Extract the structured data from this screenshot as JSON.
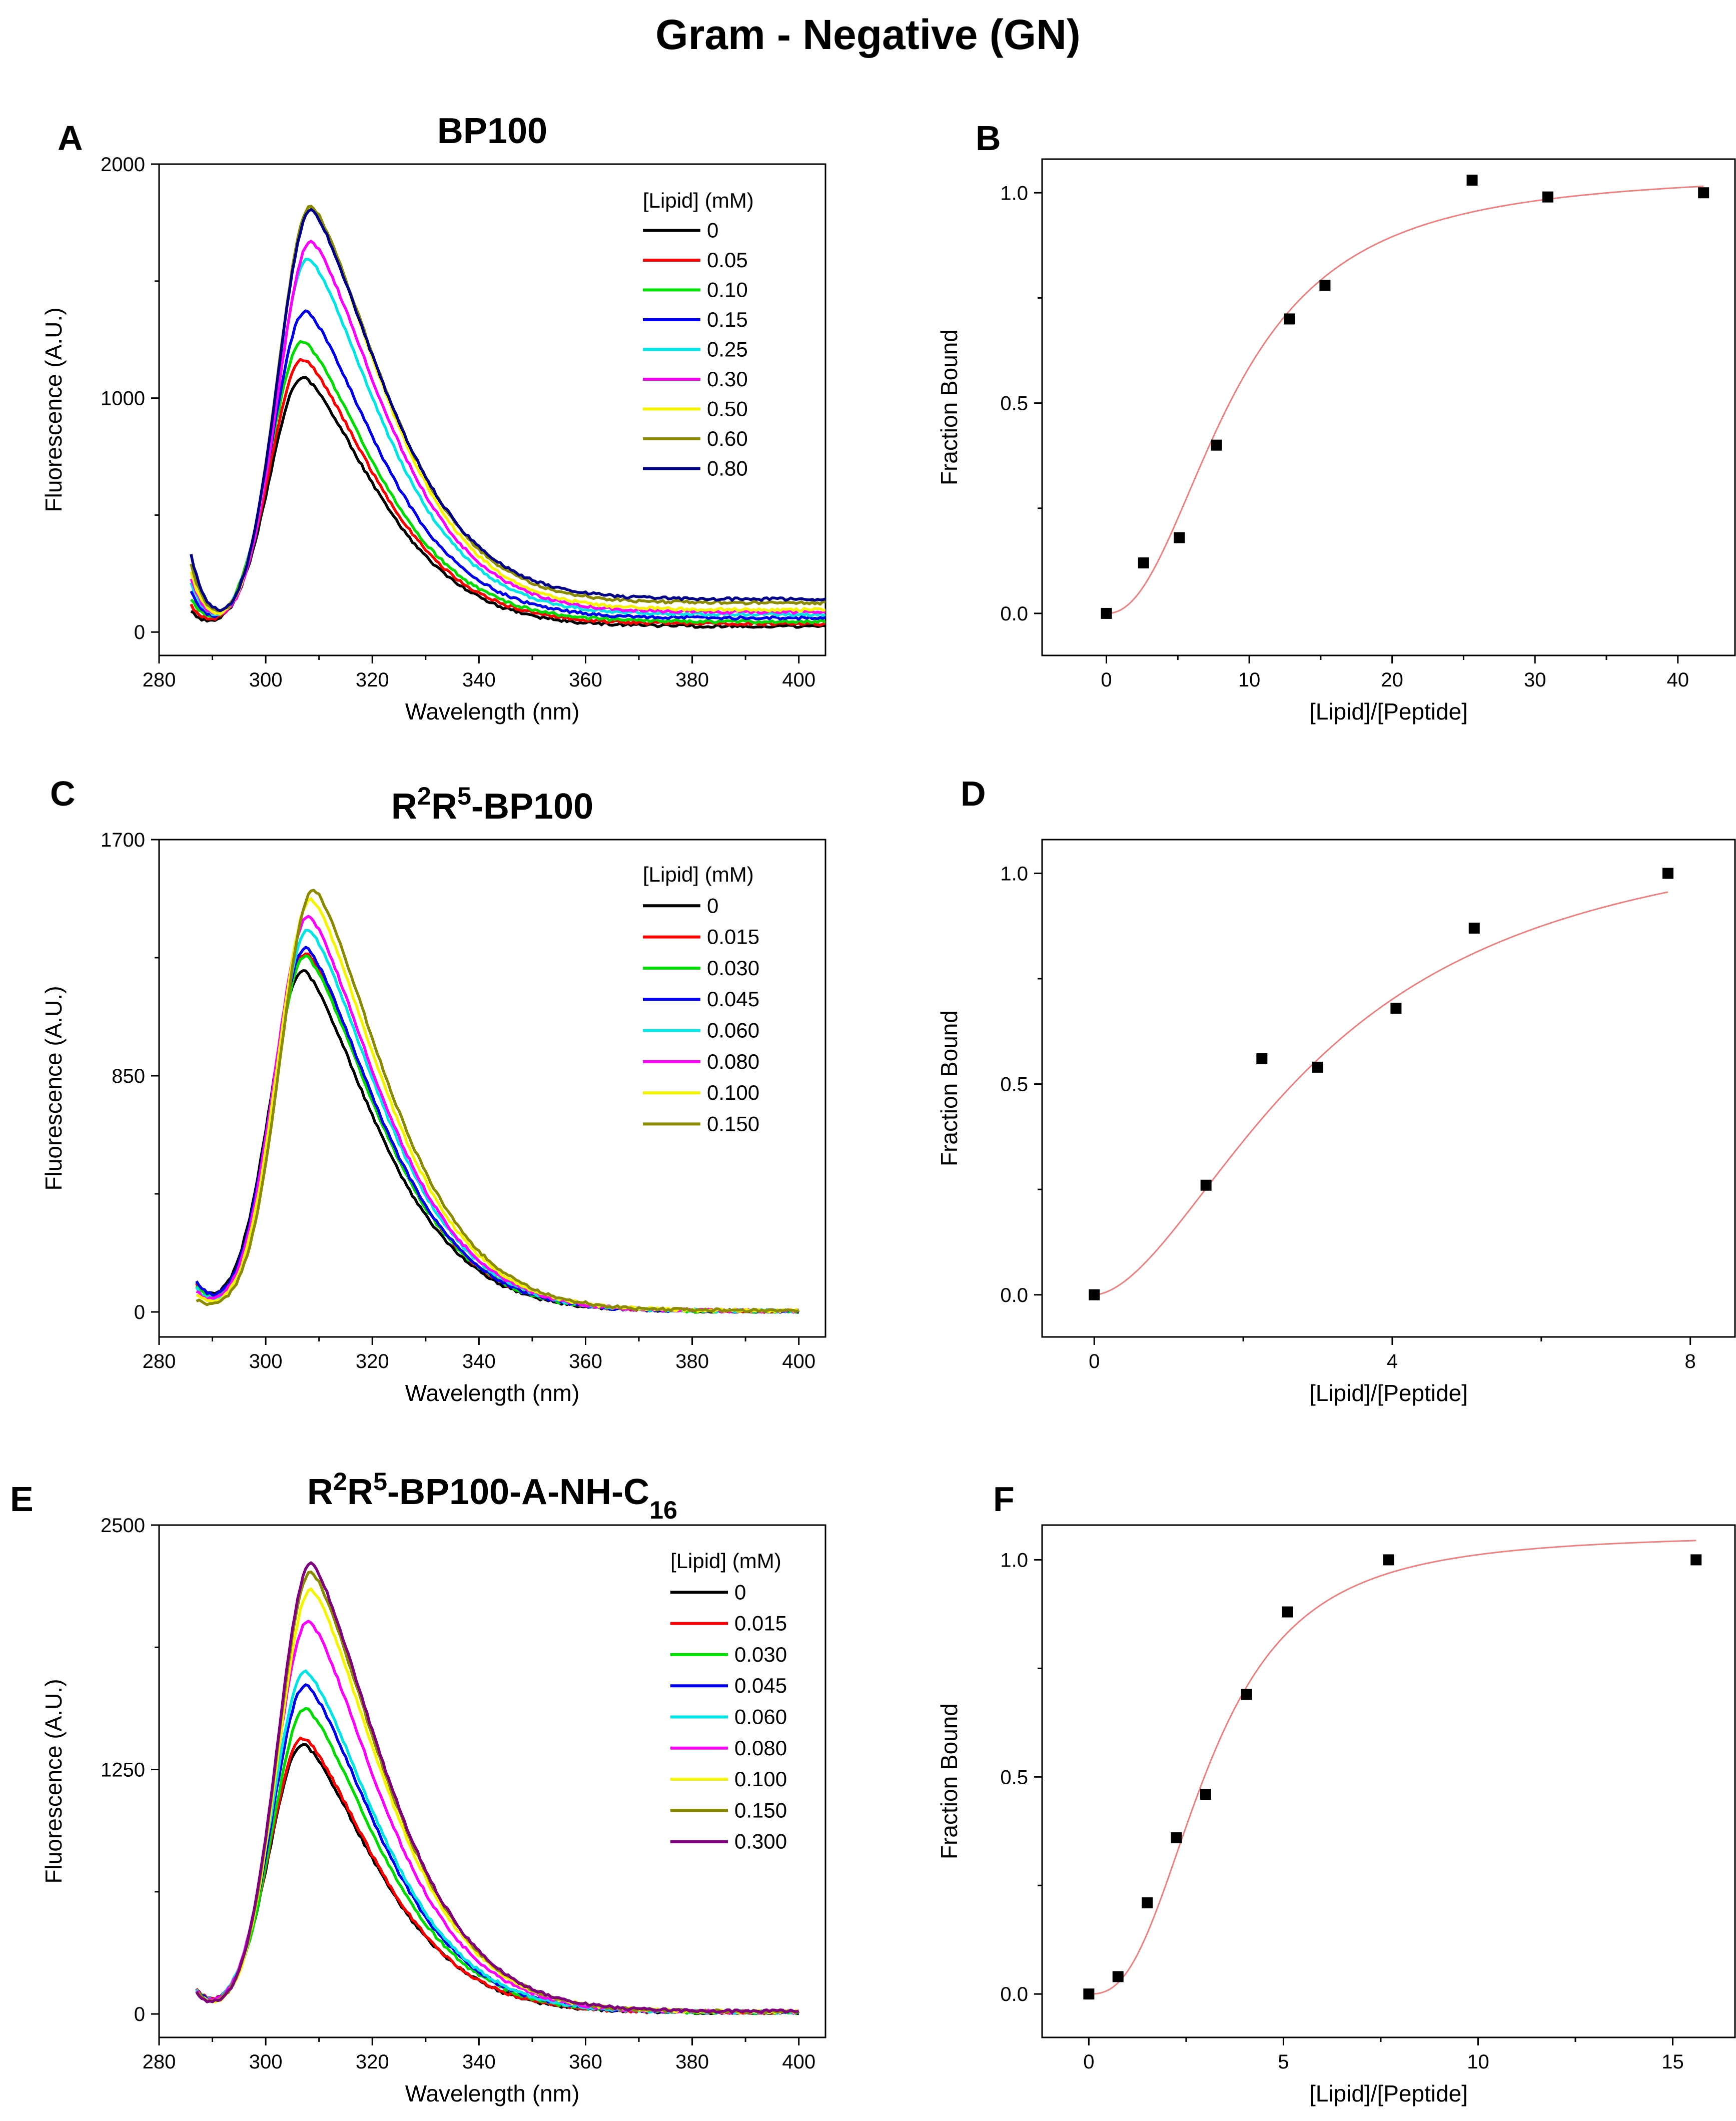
{
  "figure_title": "Gram - Negative (GN)",
  "colors": {
    "axis": "#000000",
    "fit": "#f08080",
    "point": "#000000"
  },
  "chart_data": [
    {
      "id": "A",
      "panel_label": "A",
      "type": "line",
      "title_html": "BP100",
      "title_plain": "BP100",
      "xlabel": "Wavelength (nm)",
      "ylabel": "Fluorescence (A.U.)",
      "xlim": [
        280,
        405
      ],
      "ylim": [
        -100,
        2000
      ],
      "xticks": [
        280,
        300,
        320,
        340,
        360,
        380,
        400
      ],
      "yticks": [
        0,
        1000,
        2000
      ],
      "x_start": 286,
      "x_end": 405,
      "legend_title": "[Lipid] (mM)",
      "legend_position": "top-right",
      "series": [
        {
          "name": "0",
          "color": "#000000",
          "peak_nm": 307,
          "peak": 1090,
          "start": 85,
          "tail": 25
        },
        {
          "name": "0.05",
          "color": "#ff0000",
          "peak_nm": 307,
          "peak": 1165,
          "start": 110,
          "tail": 35
        },
        {
          "name": "0.10",
          "color": "#00dd00",
          "peak_nm": 307,
          "peak": 1240,
          "start": 140,
          "tail": 45
        },
        {
          "name": "0.15",
          "color": "#0000ee",
          "peak_nm": 307.5,
          "peak": 1370,
          "start": 170,
          "tail": 60
        },
        {
          "name": "0.25",
          "color": "#00e5e5",
          "peak_nm": 308,
          "peak": 1595,
          "start": 210,
          "tail": 75
        },
        {
          "name": "0.30",
          "color": "#ff00ff",
          "peak_nm": 308.5,
          "peak": 1670,
          "start": 230,
          "tail": 85
        },
        {
          "name": "0.50",
          "color": "#f5f500",
          "peak_nm": 308.5,
          "peak": 1810,
          "start": 250,
          "tail": 95
        },
        {
          "name": "0.60",
          "color": "#8b8b00",
          "peak_nm": 308.5,
          "peak": 1820,
          "start": 290,
          "tail": 125
        },
        {
          "name": "0.80",
          "color": "#00008b",
          "peak_nm": 308.5,
          "peak": 1800,
          "start": 330,
          "tail": 140
        }
      ]
    },
    {
      "id": "B",
      "panel_label": "B",
      "type": "scatter",
      "title_html": "",
      "title_plain": "",
      "xlabel": "[Lipid]/[Peptide]",
      "ylabel": "Fraction Bound",
      "xlim": [
        -4.5,
        44
      ],
      "ylim": [
        -0.1,
        1.08
      ],
      "xticks": [
        0,
        10,
        20,
        30,
        40
      ],
      "yticks": [
        0.0,
        0.5,
        1.0
      ],
      "ytick_labels": [
        "0.0",
        "0.5",
        "1.0"
      ],
      "points": [
        [
          0,
          0.0
        ],
        [
          2.6,
          0.12
        ],
        [
          5.1,
          0.18
        ],
        [
          7.7,
          0.4
        ],
        [
          12.8,
          0.7
        ],
        [
          15.3,
          0.78
        ],
        [
          25.6,
          1.03
        ],
        [
          30.9,
          0.99
        ],
        [
          41.8,
          1.0
        ]
      ],
      "fit": {
        "model": "hill",
        "max": 1.05,
        "k": 9.0,
        "n": 2.2,
        "x_range": [
          0,
          41.8
        ]
      }
    },
    {
      "id": "C",
      "panel_label": "C",
      "type": "line",
      "title_html": "R<tspan baseline-shift=\"super\" font-size=\"70%\">2</tspan>R<tspan baseline-shift=\"super\" font-size=\"70%\">5</tspan>-BP100",
      "title_plain": "R2R5-BP100",
      "xlabel": "Wavelength (nm)",
      "ylabel": "Fluorescence (A.U.)",
      "xlim": [
        280,
        405
      ],
      "ylim": [
        -90,
        1700
      ],
      "xticks": [
        280,
        300,
        320,
        340,
        360,
        380,
        400
      ],
      "yticks": [
        0,
        850,
        1700
      ],
      "x_start": 287,
      "x_end": 400,
      "legend_title": "[Lipid] (mM)",
      "legend_position": "top-right",
      "series": [
        {
          "name": "0",
          "color": "#000000",
          "peak_nm": 307,
          "peak": 1230,
          "start": 100,
          "tail": 3
        },
        {
          "name": "0.015",
          "color": "#ff0000",
          "peak_nm": 307.5,
          "peak": 1290,
          "start": 95,
          "tail": 3
        },
        {
          "name": "0.030",
          "color": "#00dd00",
          "peak_nm": 307.5,
          "peak": 1280,
          "start": 90,
          "tail": 3
        },
        {
          "name": "0.045",
          "color": "#0000ee",
          "peak_nm": 307.5,
          "peak": 1310,
          "start": 105,
          "tail": 3
        },
        {
          "name": "0.060",
          "color": "#00e5e5",
          "peak_nm": 308,
          "peak": 1375,
          "start": 80,
          "tail": 4
        },
        {
          "name": "0.080",
          "color": "#ff00ff",
          "peak_nm": 308,
          "peak": 1425,
          "start": 70,
          "tail": 4
        },
        {
          "name": "0.100",
          "color": "#f5f500",
          "peak_nm": 308.5,
          "peak": 1485,
          "start": 60,
          "tail": 5
        },
        {
          "name": "0.150",
          "color": "#8b8b00",
          "peak_nm": 309,
          "peak": 1520,
          "start": 40,
          "tail": 5
        }
      ]
    },
    {
      "id": "D",
      "panel_label": "D",
      "type": "scatter",
      "title_html": "",
      "title_plain": "",
      "xlabel": "[Lipid]/[Peptide]",
      "ylabel": "Fraction Bound",
      "xlim": [
        -0.7,
        8.6
      ],
      "ylim": [
        -0.1,
        1.08
      ],
      "xticks": [
        0,
        4,
        8
      ],
      "yticks": [
        0.0,
        0.5,
        1.0
      ],
      "ytick_labels": [
        "0.0",
        "0.5",
        "1.0"
      ],
      "points": [
        [
          0,
          0.0
        ],
        [
          1.5,
          0.26
        ],
        [
          2.25,
          0.56
        ],
        [
          3.0,
          0.54
        ],
        [
          4.05,
          0.68
        ],
        [
          5.1,
          0.87
        ],
        [
          7.7,
          1.0
        ]
      ],
      "fit": {
        "model": "hill",
        "max": 1.15,
        "k": 3.1,
        "n": 1.75,
        "x_range": [
          0,
          7.7
        ]
      }
    },
    {
      "id": "E",
      "panel_label": "E",
      "type": "line",
      "title_html": "R<tspan baseline-shift=\"super\" font-size=\"70%\">2</tspan>R<tspan baseline-shift=\"super\" font-size=\"70%\">5</tspan>-BP100-A-NH-C<tspan baseline-shift=\"sub\" font-size=\"70%\">16</tspan>",
      "title_plain": "R2R5-BP100-A-NH-C16",
      "xlabel": "Wavelength (nm)",
      "ylabel": "Fluorescence (A.U.)",
      "xlim": [
        280,
        405
      ],
      "ylim": [
        -120,
        2500
      ],
      "xticks": [
        280,
        300,
        320,
        340,
        360,
        380,
        400
      ],
      "yticks": [
        0,
        1250,
        2500
      ],
      "x_start": 287,
      "x_end": 400,
      "legend_title": "[Lipid] (mM)",
      "legend_position": "top-right",
      "series": [
        {
          "name": "0",
          "color": "#000000",
          "peak_nm": 307,
          "peak": 1380,
          "start": 120,
          "tail": 8
        },
        {
          "name": "0.015",
          "color": "#ff0000",
          "peak_nm": 307,
          "peak": 1410,
          "start": 120,
          "tail": 8
        },
        {
          "name": "0.030",
          "color": "#00dd00",
          "peak_nm": 307.5,
          "peak": 1560,
          "start": 115,
          "tail": 9
        },
        {
          "name": "0.045",
          "color": "#0000ee",
          "peak_nm": 307.5,
          "peak": 1680,
          "start": 115,
          "tail": 10
        },
        {
          "name": "0.060",
          "color": "#00e5e5",
          "peak_nm": 307.5,
          "peak": 1750,
          "start": 110,
          "tail": 10
        },
        {
          "name": "0.080",
          "color": "#ff00ff",
          "peak_nm": 308,
          "peak": 2010,
          "start": 110,
          "tail": 11
        },
        {
          "name": "0.100",
          "color": "#f5f500",
          "peak_nm": 308.5,
          "peak": 2170,
          "start": 105,
          "tail": 12
        },
        {
          "name": "0.150",
          "color": "#8b8b00",
          "peak_nm": 308.5,
          "peak": 2260,
          "start": 105,
          "tail": 12
        },
        {
          "name": "0.300",
          "color": "#800080",
          "peak_nm": 308.5,
          "peak": 2300,
          "start": 100,
          "tail": 13
        }
      ]
    },
    {
      "id": "F",
      "panel_label": "F",
      "type": "scatter",
      "title_html": "",
      "title_plain": "",
      "xlabel": "[Lipid]/[Peptide]",
      "ylabel": "Fraction Bound",
      "xlim": [
        -1.2,
        16.6
      ],
      "ylim": [
        -0.1,
        1.08
      ],
      "xticks": [
        0,
        5,
        10,
        15
      ],
      "yticks": [
        0.0,
        0.5,
        1.0
      ],
      "ytick_labels": [
        "0.0",
        "0.5",
        "1.0"
      ],
      "points": [
        [
          0,
          0.0
        ],
        [
          0.75,
          0.04
        ],
        [
          1.5,
          0.21
        ],
        [
          2.25,
          0.36
        ],
        [
          3.0,
          0.46
        ],
        [
          4.05,
          0.69
        ],
        [
          5.1,
          0.88
        ],
        [
          7.7,
          1.0
        ],
        [
          15.6,
          1.0
        ]
      ],
      "fit": {
        "model": "hill",
        "max": 1.06,
        "k": 3.1,
        "n": 2.6,
        "x_range": [
          0,
          15.6
        ]
      }
    }
  ]
}
